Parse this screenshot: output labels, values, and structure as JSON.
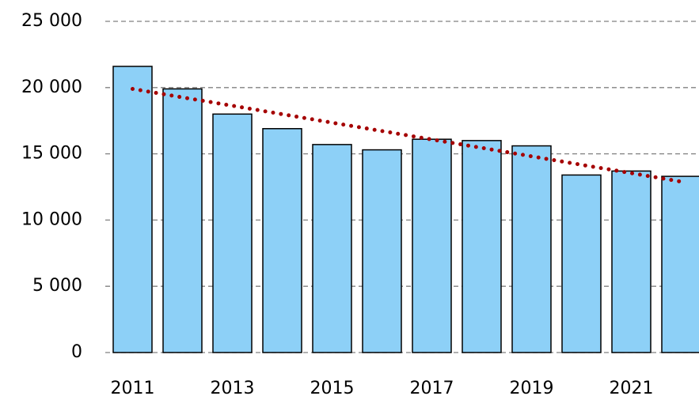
{
  "chart_data": {
    "type": "bar",
    "categories": [
      "2011",
      null,
      "2013",
      null,
      "2015",
      null,
      "2017",
      null,
      "2019",
      null,
      "2021",
      null
    ],
    "values": [
      21600,
      19900,
      18000,
      16900,
      15700,
      15300,
      16100,
      16000,
      15600,
      13400,
      13700,
      13300
    ],
    "color": "#8dd0f7",
    "trend": {
      "values": [
        19900,
        19260,
        18630,
        17990,
        17350,
        16720,
        16080,
        15450,
        14810,
        14170,
        13540,
        12900
      ],
      "color": "#a50000"
    },
    "ylim": [
      0,
      25000
    ],
    "yticks": [
      0,
      {
        "value": 5000,
        "label": "5 000"
      },
      {
        "value": 10000,
        "label": "10 000"
      },
      {
        "value": 15000,
        "label": "15 000"
      },
      {
        "value": 20000,
        "label": "20 000"
      },
      {
        "value": 25000,
        "label": "25 000"
      }
    ],
    "grid": true
  }
}
